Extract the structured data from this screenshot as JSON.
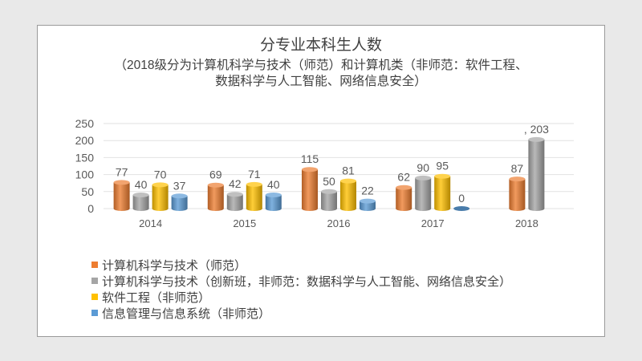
{
  "chart_data": {
    "type": "bar",
    "title": "分专业本科生人数",
    "subtitle_lines": [
      "（2018级分为计算机科学与技术（师范）和计算机类（非师范：软件工程、",
      "数据科学与人工智能、网络信息安全）"
    ],
    "categories": [
      "2014",
      "2015",
      "2016",
      "2017",
      "2018"
    ],
    "ylim": [
      0,
      250
    ],
    "yticks": [
      "0",
      "50",
      "100",
      "150",
      "200",
      "250"
    ],
    "grid": true,
    "legend_position": "bottom-left",
    "series": [
      {
        "name": "计算机科学与技术（师范）",
        "color": "#ed7d31",
        "values": [
          77,
          69,
          115,
          62,
          87
        ],
        "labels": [
          "77",
          "69",
          "115",
          "62",
          "87"
        ]
      },
      {
        "name": "计算机科学与技术（创新班，非师范：数据科学与人工智能、网络信息安全）",
        "color": "#a5a5a5",
        "values": [
          40,
          42,
          50,
          90,
          203
        ],
        "labels": [
          "40",
          "42",
          "50",
          "90",
          ", 203"
        ]
      },
      {
        "name": "软件工程（非师范）",
        "color": "#ffc000",
        "values": [
          70,
          71,
          81,
          95,
          null
        ],
        "labels": [
          "70",
          "71",
          "81",
          "95",
          ""
        ]
      },
      {
        "name": "信息管理与信息系统（非师范）",
        "color": "#5b9bd5",
        "values": [
          37,
          40,
          22,
          0,
          null
        ],
        "labels": [
          "37",
          "40",
          "22",
          "0",
          ""
        ]
      }
    ]
  }
}
